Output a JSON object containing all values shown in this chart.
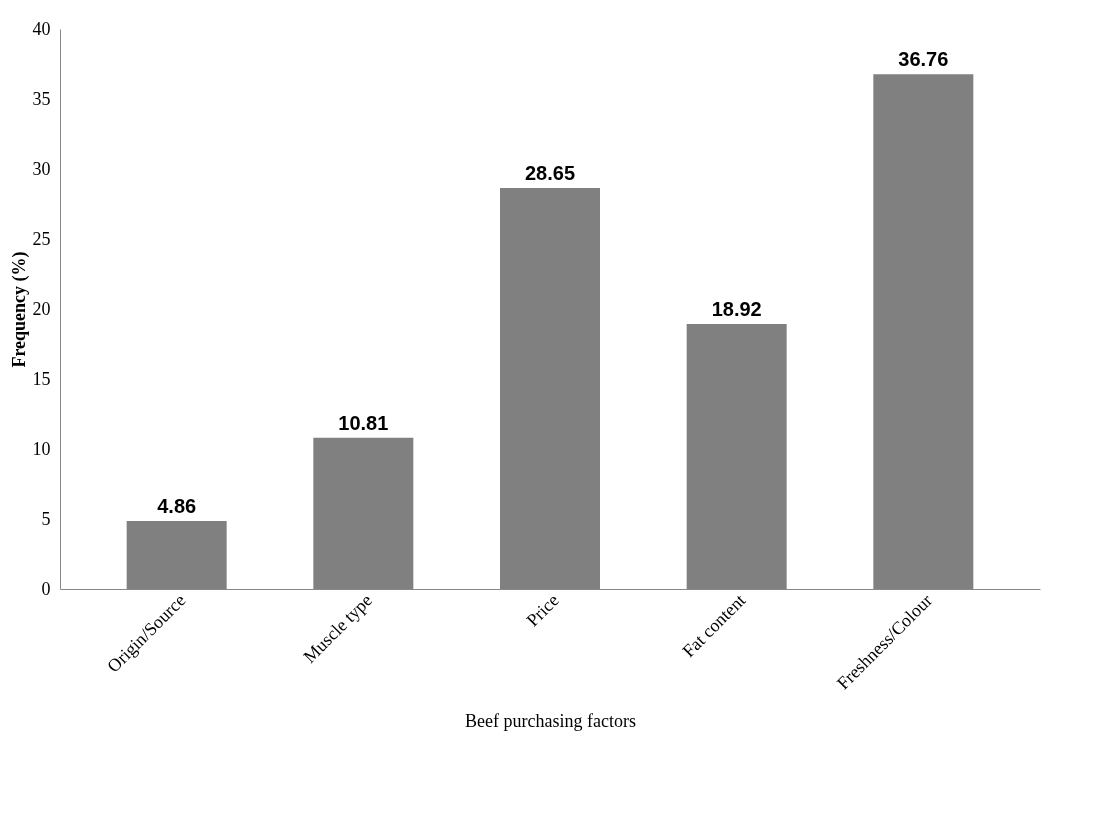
{
  "chart_data": {
    "type": "bar",
    "xlabel": "Beef purchasing factors",
    "ylabel": "Frequency (%)",
    "categories": [
      "Origin/Source",
      "Muscle type",
      "Price",
      "Fat content",
      "Freshness/Colour"
    ],
    "values": [
      4.86,
      10.81,
      28.65,
      18.92,
      36.76
    ],
    "color": "#808080",
    "ylim": [
      0,
      40
    ],
    "yticks": [
      0,
      5,
      10,
      15,
      20,
      25,
      30,
      35,
      40
    ],
    "grid": false,
    "data_labels": true
  }
}
